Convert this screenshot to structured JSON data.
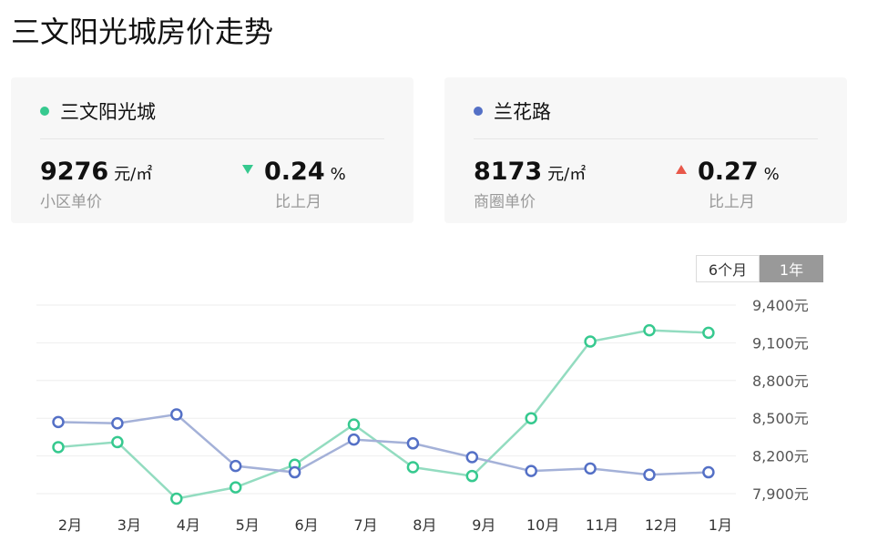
{
  "page": {
    "title": "三文阳光城房价走势"
  },
  "cards": [
    {
      "name": "三文阳光城",
      "dot_color": "#36c98f",
      "price": "9276",
      "price_unit": "元/㎡",
      "price_label": "小区单价",
      "change_direction": "down",
      "change": "0.24",
      "change_unit": "%",
      "change_label": "比上月"
    },
    {
      "name": "兰花路",
      "dot_color": "#5470c6",
      "price": "8173",
      "price_unit": "元/㎡",
      "price_label": "商圈单价",
      "change_direction": "up",
      "change": "0.27",
      "change_unit": "%",
      "change_label": "比上月"
    }
  ],
  "tabs": [
    {
      "label": "6个月",
      "active": false
    },
    {
      "label": "1年",
      "active": true
    }
  ],
  "chart_data": {
    "type": "line",
    "categories": [
      "2月",
      "3月",
      "4月",
      "5月",
      "6月",
      "7月",
      "8月",
      "9月",
      "10月",
      "11月",
      "12月",
      "1月"
    ],
    "y_tick_labels": [
      "9,400元",
      "9,100元",
      "8,800元",
      "8,500元",
      "8,200元",
      "7,900元"
    ],
    "y_ticks": [
      9400,
      9100,
      8800,
      8500,
      8200,
      7900
    ],
    "ylim": [
      7900,
      9400
    ],
    "grid": true,
    "series": [
      {
        "name": "三文阳光城",
        "color": "#36c98f",
        "values": [
          8270,
          8310,
          7860,
          7950,
          8130,
          8450,
          8110,
          8040,
          8500,
          9110,
          9200,
          9180
        ]
      },
      {
        "name": "兰花路",
        "color": "#5470c6",
        "values": [
          8470,
          8460,
          8530,
          8120,
          8070,
          8330,
          8300,
          8190,
          8080,
          8100,
          8050,
          8070
        ]
      }
    ]
  }
}
